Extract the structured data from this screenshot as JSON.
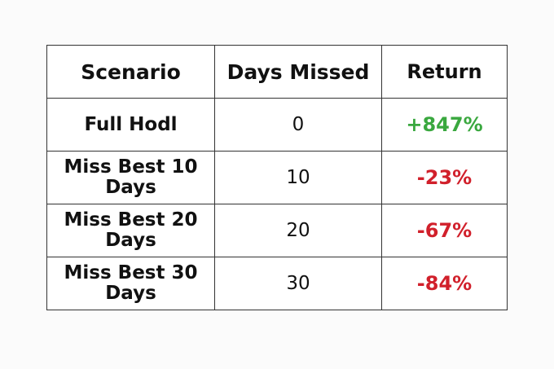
{
  "table": {
    "headers": [
      "Scenario",
      "Days Missed",
      "Return"
    ],
    "rows": [
      {
        "scenario": "Full Hodl",
        "days": "0",
        "return": "+847%",
        "sign": "positive"
      },
      {
        "scenario": "Miss Best 10 Days",
        "days": "10",
        "return": "-23%",
        "sign": "negative"
      },
      {
        "scenario": "Miss Best 20 Days",
        "days": "20",
        "return": "-67%",
        "sign": "negative"
      },
      {
        "scenario": "Miss Best 30 Days",
        "days": "30",
        "return": "-84%",
        "sign": "negative"
      }
    ]
  },
  "colors": {
    "positive": "#3aa83f",
    "negative": "#d1202b"
  }
}
